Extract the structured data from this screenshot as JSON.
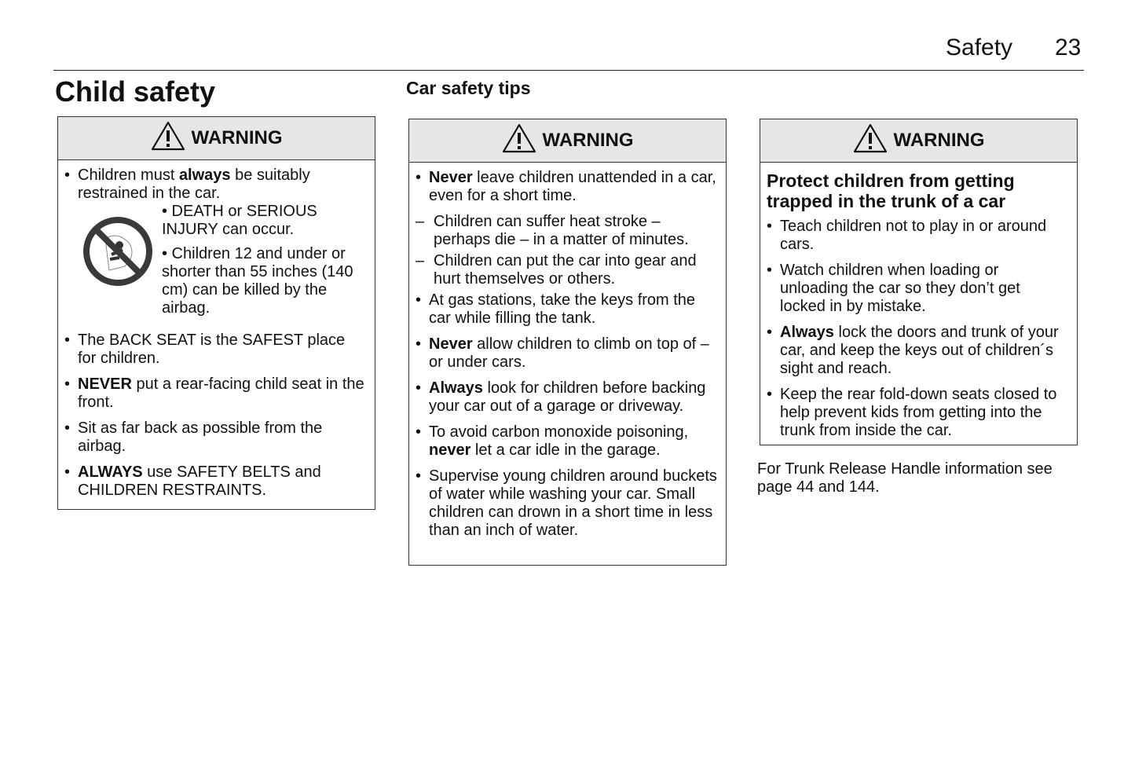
{
  "header": {
    "section": "Safety",
    "page_number": "23"
  },
  "title": "Child safety",
  "subtitle": "Car safety tips",
  "warning_label": "WARNING",
  "col1": {
    "items_top": [
      {
        "pre": "Children must ",
        "bold": "always",
        "post": " be suitably restrained in the car."
      }
    ],
    "airbag_icon": "no-child-airbag-icon",
    "airbag_notes": [
      "•  DEATH or SERIOUS INJURY can occur.",
      "• Children 12 and under or shorter than 55 inches (140 cm) can be killed by the airbag."
    ],
    "items": [
      {
        "pre": "The BACK SEAT is the SAFEST place for children.",
        "bold": "",
        "post": ""
      },
      {
        "pre": "",
        "bold": "NEVER",
        "post": " put a rear-facing child seat in the front."
      },
      {
        "pre": "Sit as far back as possible from the airbag.",
        "bold": "",
        "post": ""
      },
      {
        "pre": "",
        "bold": "ALWAYS",
        "post": " use SAFETY BELTS and CHILDREN RESTRAINTS."
      }
    ]
  },
  "col2": {
    "items": [
      {
        "pre": "",
        "bold": "Never",
        "post": " leave children unattended in a car, even for a short time."
      },
      {
        "dash": true,
        "pre": "Children can suffer heat stroke – perhaps die – in a matter of minutes.",
        "bold": "",
        "post": ""
      },
      {
        "dash": true,
        "pre": "Children can put the car into gear and hurt themselves or others.",
        "bold": "",
        "post": ""
      },
      {
        "pre": "At gas stations, take the keys from the car while filling the tank.",
        "bold": "",
        "post": ""
      },
      {
        "pre": "",
        "bold": "Never",
        "post": " allow children to climb on top of – or under cars."
      },
      {
        "pre": "",
        "bold": "Always",
        "post": " look for children before backing your car out of a garage or driveway."
      },
      {
        "pre": "To avoid carbon monoxide poisoning, ",
        "bold": "never",
        "post": " let a car idle in the garage."
      },
      {
        "pre": "Supervise young children around buckets of water while washing your car. Small children can drown in a short time in less than an inch of water.",
        "bold": "",
        "post": ""
      }
    ]
  },
  "col3": {
    "box_title": "Protect children from getting trapped in the trunk of a car",
    "items": [
      {
        "pre": "Teach children not to play in or around cars.",
        "bold": "",
        "post": ""
      },
      {
        "pre": "Watch children when loading or unloading the car so they don’t get locked in by mistake.",
        "bold": "",
        "post": ""
      },
      {
        "pre": "",
        "bold": "Always",
        "post": " lock the doors and trunk of your car, and keep the keys out of children´s sight and reach."
      },
      {
        "pre": "Keep the rear fold-down seats closed to help prevent kids from getting into the trunk from inside the car.",
        "bold": "",
        "post": ""
      }
    ],
    "note": "For Trunk Release Handle information see page  44 and  144."
  }
}
